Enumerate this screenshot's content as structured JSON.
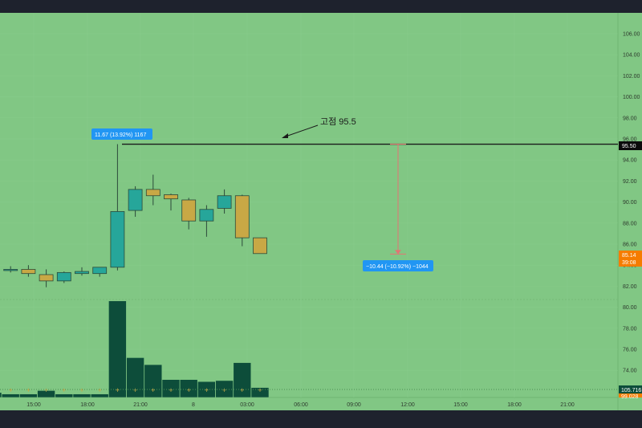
{
  "chart_data": {
    "type": "candlestick",
    "y_ticks": [
      "106.00",
      "104.00",
      "102.00",
      "100.00",
      "98.00",
      "96.00",
      "94.00",
      "92.00",
      "90.00",
      "88.00",
      "86.00",
      "84.00",
      "82.00",
      "80.00",
      "78.00",
      "76.00",
      "74.00"
    ],
    "x_ticks": [
      "15:00",
      "18:00",
      "21:00",
      "8",
      "03:00",
      "06:00",
      "09:00",
      "12:00",
      "15:00",
      "18:00",
      "21:00"
    ],
    "ylim": [
      72.6,
      107.8
    ],
    "candles": [
      {
        "o": 83.4,
        "h": 83.6,
        "l": 83.3,
        "c": 83.6
      },
      {
        "o": 83.5,
        "h": 83.9,
        "l": 83.3,
        "c": 83.6
      },
      {
        "o": 83.6,
        "h": 84.0,
        "l": 82.9,
        "c": 83.2
      },
      {
        "o": 83.1,
        "h": 83.6,
        "l": 81.9,
        "c": 82.5
      },
      {
        "o": 82.5,
        "h": 83.4,
        "l": 82.3,
        "c": 83.3
      },
      {
        "o": 83.2,
        "h": 83.8,
        "l": 83.0,
        "c": 83.4
      },
      {
        "o": 83.2,
        "h": 83.7,
        "l": 82.9,
        "c": 83.8
      },
      {
        "o": 83.8,
        "h": 95.5,
        "l": 83.5,
        "c": 89.1
      },
      {
        "o": 89.2,
        "h": 91.5,
        "l": 88.6,
        "c": 91.2
      },
      {
        "o": 91.2,
        "h": 92.6,
        "l": 89.7,
        "c": 90.6
      },
      {
        "o": 90.7,
        "h": 90.8,
        "l": 89.2,
        "c": 90.3
      },
      {
        "o": 90.2,
        "h": 90.4,
        "l": 87.4,
        "c": 88.2
      },
      {
        "o": 88.2,
        "h": 89.7,
        "l": 86.7,
        "c": 89.3
      },
      {
        "o": 89.4,
        "h": 91.2,
        "l": 88.9,
        "c": 90.6
      },
      {
        "o": 90.6,
        "h": 90.7,
        "l": 85.8,
        "c": 86.6
      },
      {
        "o": 86.6,
        "h": 86.6,
        "l": 85.1,
        "c": 85.1
      }
    ],
    "volume": [
      0.5,
      0.35,
      0.35,
      0.7,
      0.35,
      0.35,
      0.35,
      9.7,
      4.0,
      3.3,
      1.8,
      1.8,
      1.6,
      1.7,
      3.5,
      1.0
    ],
    "price_label": "95.50",
    "current_price_label": "85.14",
    "countdown_label": "39:08",
    "volume_label": "105.716",
    "volume_sub_label": "99.028"
  },
  "annotation_text": "고점 95.5",
  "measure_up_label": "11.67 (13.92%) 1167",
  "measure_down_label": "−10.44 (−10.92%) −1044",
  "colors": {
    "background": "#81c784",
    "bull": "#26a69a",
    "bear": "#c8a845",
    "volume": "#0d4d3a",
    "measure_label": "#2196f3",
    "current_price": "#f57c00",
    "measure_line": "#e57373"
  }
}
